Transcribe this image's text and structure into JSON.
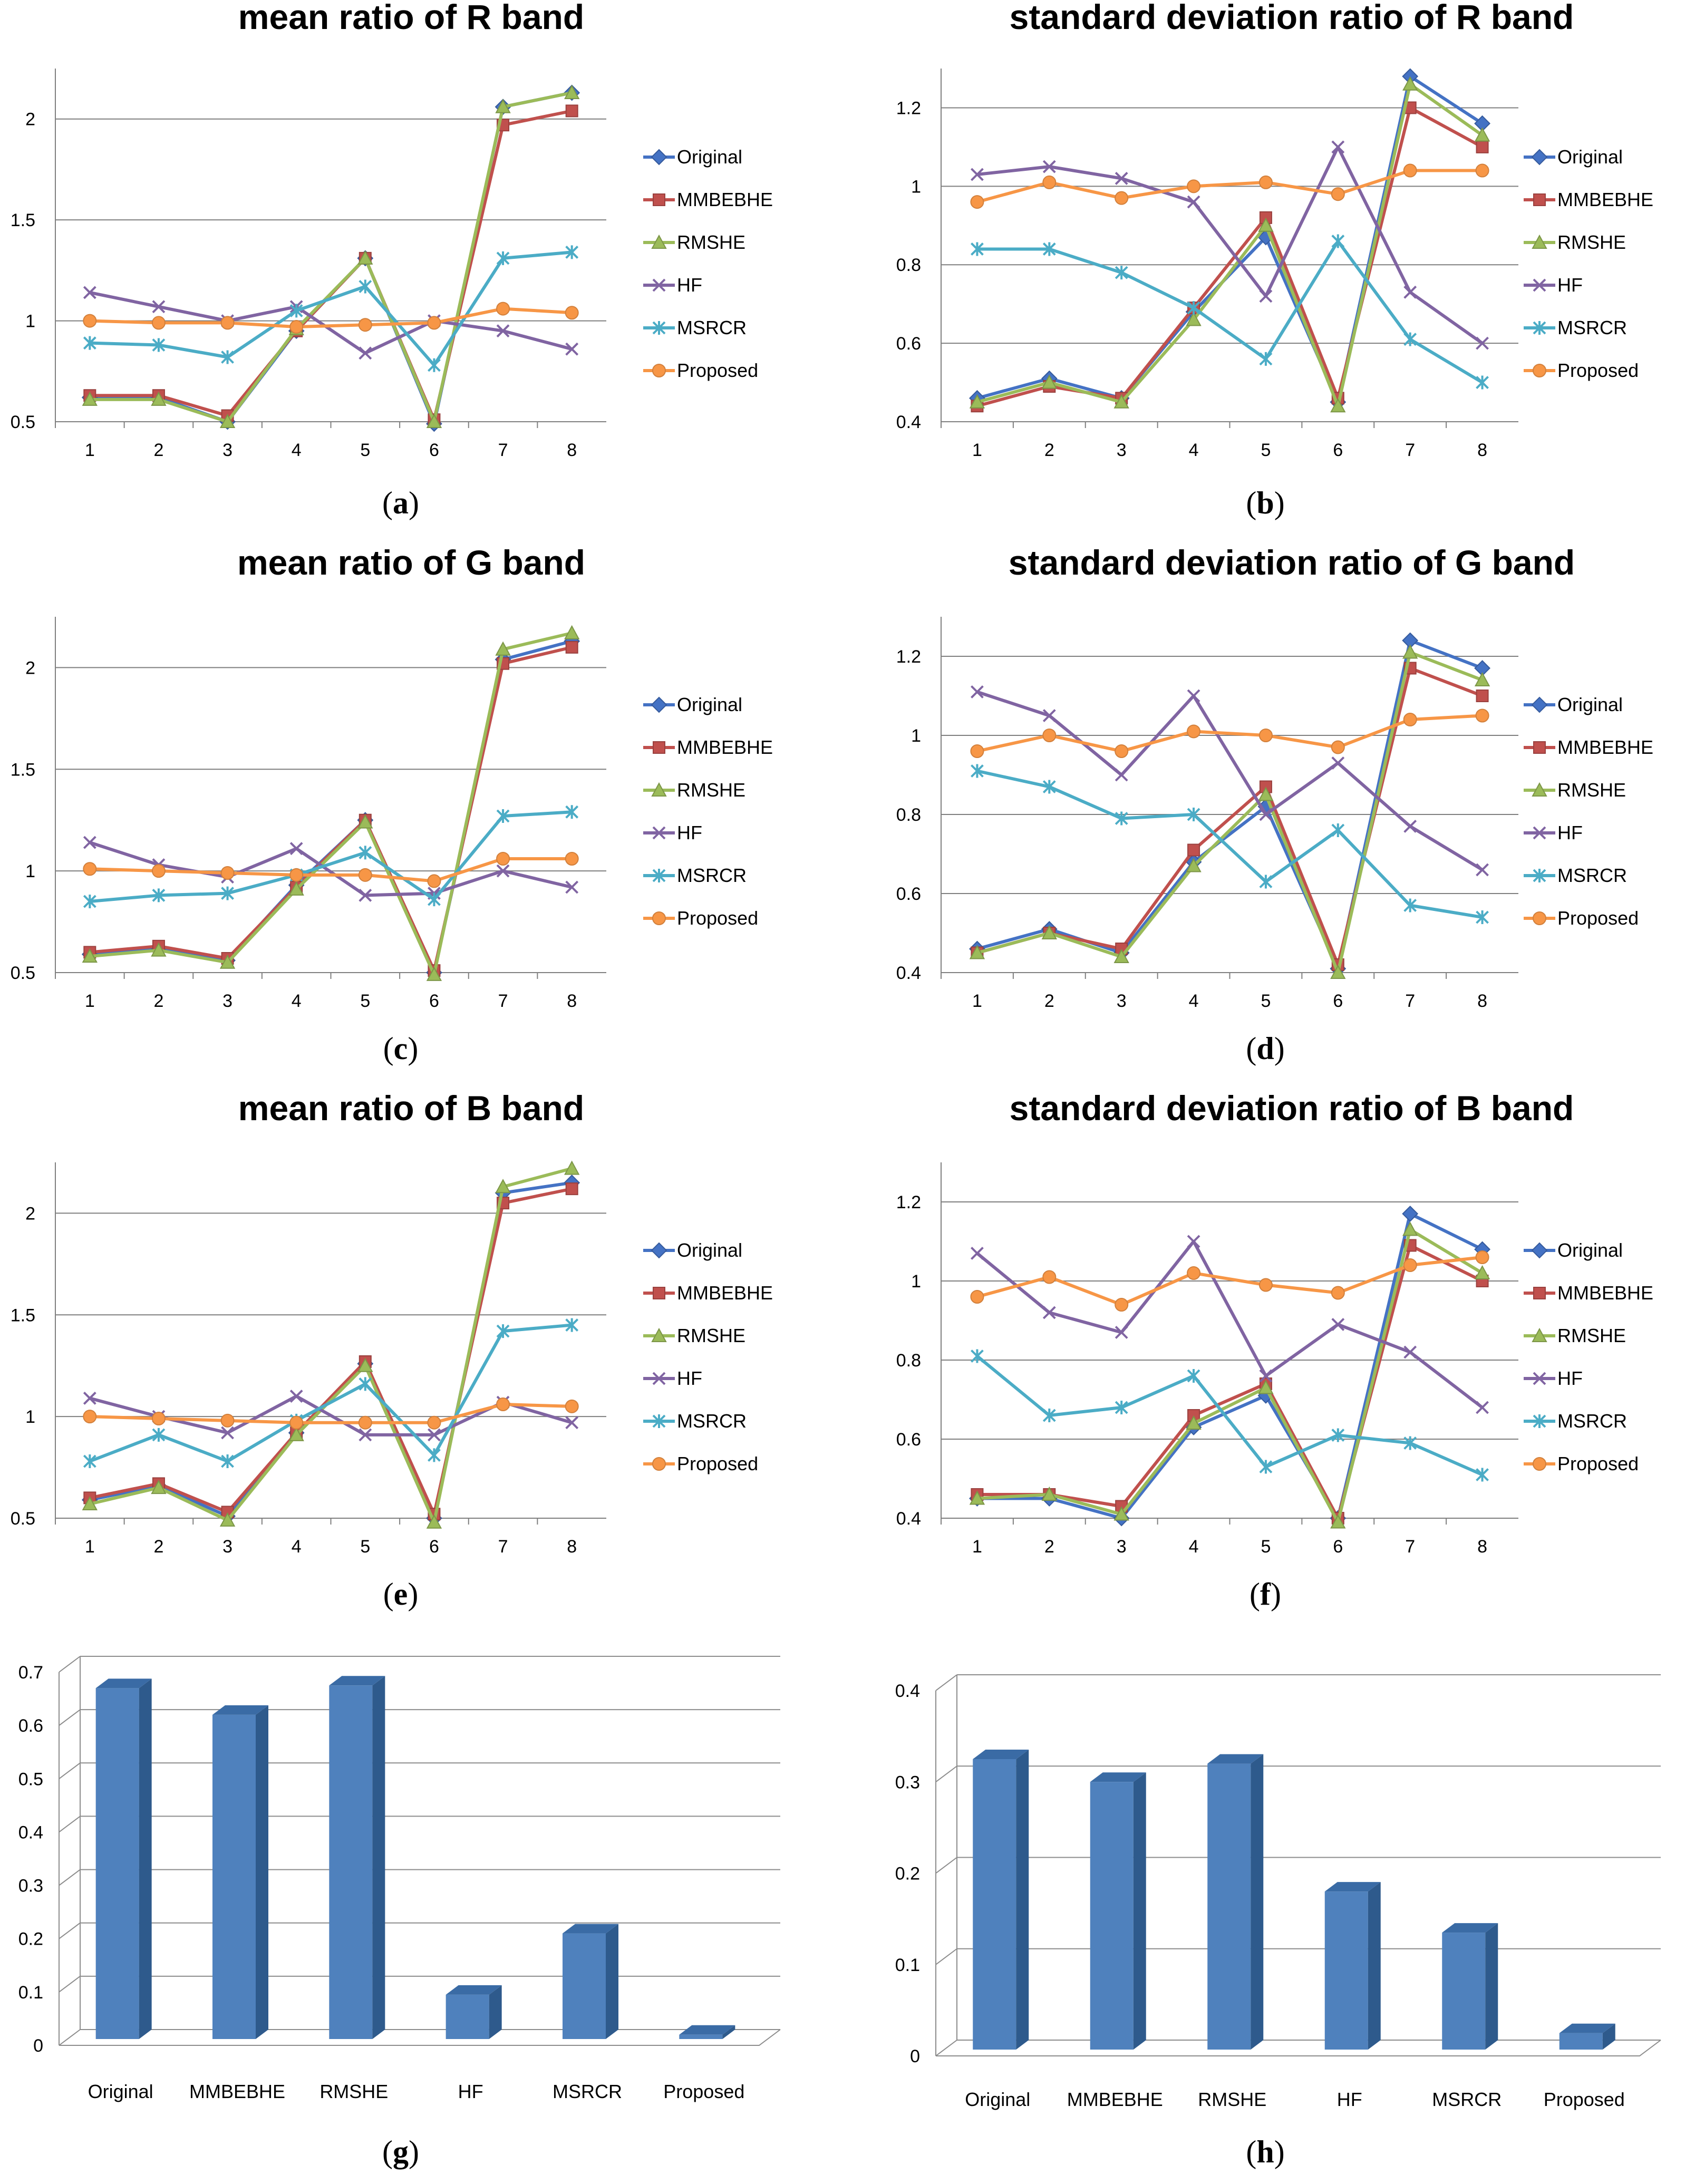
{
  "series_names": [
    "Original",
    "MMBEBHE",
    "RMSHE",
    "HF",
    "MSRCR",
    "Proposed"
  ],
  "series_colors": [
    "#4472C4",
    "#C0504D",
    "#9BBB59",
    "#8064A2",
    "#4BACC6",
    "#F79646"
  ],
  "chart_data": [
    {
      "id": "a",
      "type": "line",
      "title": "mean ratio of R band",
      "caption": "a",
      "x": [
        1,
        2,
        3,
        4,
        5,
        6,
        7,
        8
      ],
      "ylim": [
        0.5,
        2.25
      ],
      "yticks": [
        0.5,
        1,
        1.5,
        2
      ],
      "ytick_labels": [
        "0.5",
        "1",
        "1.5",
        "2"
      ],
      "series": [
        {
          "name": "Original",
          "values": [
            0.62,
            0.62,
            0.5,
            0.95,
            1.31,
            0.49,
            2.06,
            2.13
          ]
        },
        {
          "name": "MMBEBHE",
          "values": [
            0.63,
            0.63,
            0.53,
            0.95,
            1.31,
            0.51,
            1.97,
            2.04
          ]
        },
        {
          "name": "RMSHE",
          "values": [
            0.61,
            0.61,
            0.5,
            0.96,
            1.31,
            0.5,
            2.06,
            2.13
          ]
        },
        {
          "name": "HF",
          "values": [
            1.14,
            1.07,
            1.0,
            1.07,
            0.84,
            1.0,
            0.95,
            0.86
          ]
        },
        {
          "name": "MSRCR",
          "values": [
            0.89,
            0.88,
            0.82,
            1.05,
            1.17,
            0.78,
            1.31,
            1.34
          ]
        },
        {
          "name": "Proposed",
          "values": [
            1.0,
            0.99,
            0.99,
            0.97,
            0.98,
            0.99,
            1.06,
            1.04
          ]
        }
      ]
    },
    {
      "id": "b",
      "type": "line",
      "title": "standard deviation ratio of R band",
      "caption": "b",
      "x": [
        1,
        2,
        3,
        4,
        5,
        6,
        7,
        8
      ],
      "ylim": [
        0.4,
        1.3
      ],
      "yticks": [
        0.4,
        0.6,
        0.8,
        1,
        1.2
      ],
      "ytick_labels": [
        "0.4",
        "0.6",
        "0.8",
        "1",
        "1.2"
      ],
      "series": [
        {
          "name": "Original",
          "values": [
            0.46,
            0.51,
            0.46,
            0.68,
            0.87,
            0.45,
            1.28,
            1.16
          ]
        },
        {
          "name": "MMBEBHE",
          "values": [
            0.44,
            0.49,
            0.46,
            0.69,
            0.92,
            0.46,
            1.2,
            1.1
          ]
        },
        {
          "name": "RMSHE",
          "values": [
            0.45,
            0.5,
            0.45,
            0.66,
            0.9,
            0.44,
            1.26,
            1.13
          ]
        },
        {
          "name": "HF",
          "values": [
            1.03,
            1.05,
            1.02,
            0.96,
            0.72,
            1.1,
            0.73,
            0.6
          ]
        },
        {
          "name": "MSRCR",
          "values": [
            0.84,
            0.84,
            0.78,
            0.69,
            0.56,
            0.86,
            0.61,
            0.5
          ]
        },
        {
          "name": "Proposed",
          "values": [
            0.96,
            1.01,
            0.97,
            1.0,
            1.01,
            0.98,
            1.04,
            1.04
          ]
        }
      ]
    },
    {
      "id": "c",
      "type": "line",
      "title": "mean ratio of G band",
      "caption": "c",
      "x": [
        1,
        2,
        3,
        4,
        5,
        6,
        7,
        8
      ],
      "ylim": [
        0.5,
        2.25
      ],
      "yticks": [
        0.5,
        1,
        1.5,
        2
      ],
      "ytick_labels": [
        "0.5",
        "1",
        "1.5",
        "2"
      ],
      "series": [
        {
          "name": "Original",
          "values": [
            0.59,
            0.62,
            0.56,
            0.93,
            1.25,
            0.5,
            2.04,
            2.13
          ]
        },
        {
          "name": "MMBEBHE",
          "values": [
            0.6,
            0.63,
            0.57,
            0.92,
            1.25,
            0.51,
            2.02,
            2.1
          ]
        },
        {
          "name": "RMSHE",
          "values": [
            0.58,
            0.61,
            0.55,
            0.91,
            1.24,
            0.49,
            2.09,
            2.17
          ]
        },
        {
          "name": "HF",
          "values": [
            1.14,
            1.03,
            0.97,
            1.11,
            0.88,
            0.89,
            1.0,
            0.92
          ]
        },
        {
          "name": "MSRCR",
          "values": [
            0.85,
            0.88,
            0.89,
            0.98,
            1.09,
            0.86,
            1.27,
            1.29
          ]
        },
        {
          "name": "Proposed",
          "values": [
            1.01,
            1.0,
            0.99,
            0.98,
            0.98,
            0.95,
            1.06,
            1.06
          ]
        }
      ]
    },
    {
      "id": "d",
      "type": "line",
      "title": "standard deviation ratio of G band",
      "caption": "d",
      "x": [
        1,
        2,
        3,
        4,
        5,
        6,
        7,
        8
      ],
      "ylim": [
        0.4,
        1.3
      ],
      "yticks": [
        0.4,
        0.6,
        0.8,
        1,
        1.2
      ],
      "ytick_labels": [
        "0.4",
        "0.6",
        "0.8",
        "1",
        "1.2"
      ],
      "series": [
        {
          "name": "Original",
          "values": [
            0.46,
            0.51,
            0.45,
            0.68,
            0.82,
            0.41,
            1.24,
            1.17
          ]
        },
        {
          "name": "MMBEBHE",
          "values": [
            0.45,
            0.5,
            0.46,
            0.71,
            0.87,
            0.42,
            1.17,
            1.1
          ]
        },
        {
          "name": "RMSHE",
          "values": [
            0.45,
            0.5,
            0.44,
            0.67,
            0.85,
            0.4,
            1.21,
            1.14
          ]
        },
        {
          "name": "HF",
          "values": [
            1.11,
            1.05,
            0.9,
            1.1,
            0.8,
            0.93,
            0.77,
            0.66
          ]
        },
        {
          "name": "MSRCR",
          "values": [
            0.91,
            0.87,
            0.79,
            0.8,
            0.63,
            0.76,
            0.57,
            0.54
          ]
        },
        {
          "name": "Proposed",
          "values": [
            0.96,
            1.0,
            0.96,
            1.01,
            1.0,
            0.97,
            1.04,
            1.05
          ]
        }
      ]
    },
    {
      "id": "e",
      "type": "line",
      "title": "mean ratio of B band",
      "caption": "e",
      "x": [
        1,
        2,
        3,
        4,
        5,
        6,
        7,
        8
      ],
      "ylim": [
        0.5,
        2.25
      ],
      "yticks": [
        0.5,
        1,
        1.5,
        2
      ],
      "ytick_labels": [
        "0.5",
        "1",
        "1.5",
        "2"
      ],
      "series": [
        {
          "name": "Original",
          "values": [
            0.59,
            0.66,
            0.51,
            0.92,
            1.26,
            0.5,
            2.1,
            2.15
          ]
        },
        {
          "name": "MMBEBHE",
          "values": [
            0.6,
            0.67,
            0.53,
            0.92,
            1.27,
            0.52,
            2.05,
            2.12
          ]
        },
        {
          "name": "RMSHE",
          "values": [
            0.57,
            0.65,
            0.49,
            0.91,
            1.25,
            0.48,
            2.13,
            2.22
          ]
        },
        {
          "name": "HF",
          "values": [
            1.09,
            1.0,
            0.92,
            1.1,
            0.91,
            0.91,
            1.07,
            0.97
          ]
        },
        {
          "name": "MSRCR",
          "values": [
            0.78,
            0.91,
            0.78,
            0.98,
            1.16,
            0.81,
            1.42,
            1.45
          ]
        },
        {
          "name": "Proposed",
          "values": [
            1.0,
            0.99,
            0.98,
            0.97,
            0.97,
            0.97,
            1.06,
            1.05
          ]
        }
      ]
    },
    {
      "id": "f",
      "type": "line",
      "title": "standard deviation ratio of B band",
      "caption": "f",
      "x": [
        1,
        2,
        3,
        4,
        5,
        6,
        7,
        8
      ],
      "ylim": [
        0.4,
        1.3
      ],
      "yticks": [
        0.4,
        0.6,
        0.8,
        1,
        1.2
      ],
      "ytick_labels": [
        "0.4",
        "0.6",
        "0.8",
        "1",
        "1.2"
      ],
      "series": [
        {
          "name": "Original",
          "values": [
            0.45,
            0.45,
            0.4,
            0.63,
            0.71,
            0.4,
            1.17,
            1.08
          ]
        },
        {
          "name": "MMBEBHE",
          "values": [
            0.46,
            0.46,
            0.43,
            0.66,
            0.74,
            0.4,
            1.09,
            1.0
          ]
        },
        {
          "name": "RMSHE",
          "values": [
            0.45,
            0.46,
            0.41,
            0.64,
            0.73,
            0.39,
            1.13,
            1.02
          ]
        },
        {
          "name": "HF",
          "values": [
            1.07,
            0.92,
            0.87,
            1.1,
            0.76,
            0.89,
            0.82,
            0.68
          ]
        },
        {
          "name": "MSRCR",
          "values": [
            0.81,
            0.66,
            0.68,
            0.76,
            0.53,
            0.61,
            0.59,
            0.51
          ]
        },
        {
          "name": "Proposed",
          "values": [
            0.96,
            1.01,
            0.94,
            1.02,
            0.99,
            0.97,
            1.04,
            1.06
          ]
        }
      ]
    },
    {
      "id": "g",
      "type": "bar",
      "title": "",
      "caption": "g",
      "categories": [
        "Original",
        "MMBEBHE",
        "RMSHE",
        "HF",
        "MSRCR",
        "Proposed"
      ],
      "values": [
        0.67,
        0.62,
        0.675,
        0.095,
        0.21,
        0.02
      ],
      "ylim": [
        0,
        0.7
      ],
      "yticks": [
        0,
        0.1,
        0.2,
        0.3,
        0.4,
        0.5,
        0.6,
        0.7
      ],
      "ytick_labels": [
        "0",
        "0.1",
        "0.2",
        "0.3",
        "0.4",
        "0.5",
        "0.6",
        "0.7"
      ]
    },
    {
      "id": "h",
      "type": "bar",
      "title": "",
      "caption": "h",
      "categories": [
        "Original",
        "MMBEBHE",
        "RMSHE",
        "HF",
        "MSRCR",
        "Proposed"
      ],
      "values": [
        0.325,
        0.3,
        0.32,
        0.18,
        0.135,
        0.025
      ],
      "ylim": [
        0,
        0.4
      ],
      "yticks": [
        0,
        0.1,
        0.2,
        0.3,
        0.4
      ],
      "ytick_labels": [
        "0",
        "0.1",
        "0.2",
        "0.3",
        "0.4"
      ]
    }
  ]
}
